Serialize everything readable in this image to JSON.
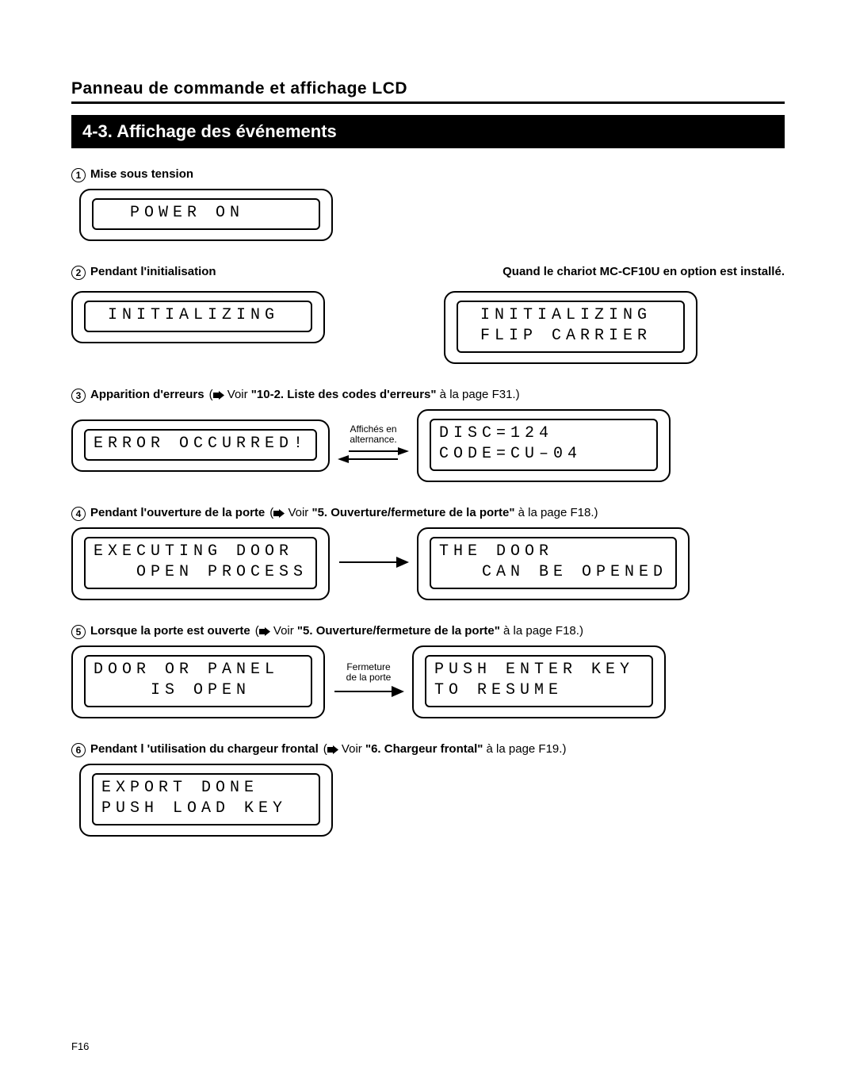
{
  "chapter_title": "Panneau de commande et affichage LCD",
  "section_title": "4-3. Affichage des événements",
  "page_number": "F16",
  "items": [
    {
      "num": "1",
      "label": "Mise sous tension",
      "lcd_left": {
        "line1": "  POWER ON",
        "line2": ""
      },
      "layout": "single"
    },
    {
      "num": "2",
      "label": "Pendant l'initialisation",
      "right_note": "Quand le chariot MC-CF10U en option est installé.",
      "lcd_left": {
        "line1": " INITIALIZING",
        "line2": ""
      },
      "lcd_right": {
        "line1": " INITIALIZING",
        "line2": " FLIP CARRIER"
      },
      "layout": "two-col-no-arrow"
    },
    {
      "num": "3",
      "label": "Apparition d'erreurs",
      "ref_prefix": "(",
      "ref_arrow": true,
      "ref_text_before": " Voir ",
      "ref_bold": "\"10-2. Liste des codes d'erreurs\"",
      "ref_text_after": " à la page F31.)",
      "lcd_left": {
        "line1": "ERROR OCCURRED!",
        "line2": ""
      },
      "arrow_caption": "Affichés en\nalternance.",
      "arrow_type": "double",
      "lcd_right": {
        "line1": "DISC=124",
        "line2": "CODE=CU–04"
      },
      "layout": "flow"
    },
    {
      "num": "4",
      "label": "Pendant l'ouverture de la porte",
      "ref_prefix": "(",
      "ref_arrow": true,
      "ref_text_before": " Voir ",
      "ref_bold": "\"5. Ouverture/fermeture de la porte\"",
      "ref_text_after": " à la page F18.)",
      "lcd_left": {
        "line1": "EXECUTING DOOR",
        "line2": "   OPEN PROCESS"
      },
      "arrow_caption": "",
      "arrow_type": "single",
      "lcd_right": {
        "line1": "THE DOOR",
        "line2": "   CAN BE OPENED"
      },
      "layout": "flow"
    },
    {
      "num": "5",
      "label": "Lorsque la porte est ouverte",
      "ref_prefix": "(",
      "ref_arrow": true,
      "ref_text_before": " Voir ",
      "ref_bold": "\"5. Ouverture/fermeture de la porte\"",
      "ref_text_after": " à la page F18.)",
      "lcd_left": {
        "line1": "DOOR OR PANEL",
        "line2": "    IS OPEN"
      },
      "arrow_caption": "Fermeture\nde la porte",
      "arrow_type": "single",
      "lcd_right": {
        "line1": "PUSH ENTER KEY",
        "line2": "TO RESUME"
      },
      "layout": "flow"
    },
    {
      "num": "6",
      "label": "Pendant l 'utilisation du chargeur frontal",
      "ref_prefix": "(",
      "ref_arrow": true,
      "ref_text_before": " Voir ",
      "ref_bold": "\"6. Chargeur frontal\"",
      "ref_text_after": " à la page F19.)",
      "lcd_left": {
        "line1": "EXPORT DONE",
        "line2": "PUSH LOAD KEY"
      },
      "layout": "single"
    }
  ]
}
